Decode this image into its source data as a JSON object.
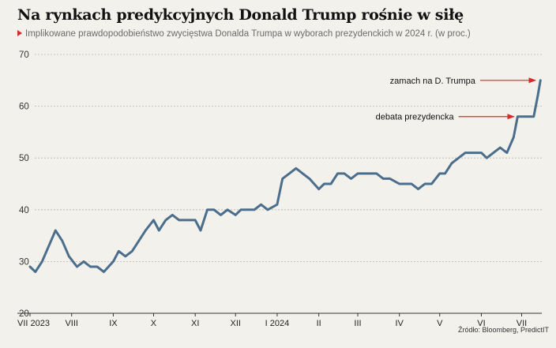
{
  "title": "Na rynkach predykcyjnych Donald Trump rośnie w siłę",
  "subtitle": "Implikowane prawdopodobieństwo zwycięstwa Donalda Trumpa w wyborach prezydenckich w 2024 r. (w proc.)",
  "source": "Źródło: Bloomberg, PredictIT",
  "colors": {
    "line": "#4a6e8c",
    "accent": "#d62b2b",
    "background": "#f3f1ec",
    "grid": "#b9b6ae"
  },
  "chart_data": {
    "type": "line",
    "title": "Na rynkach predykcyjnych Donald Trump rośnie w siłę",
    "subtitle": "Implikowane prawdopodobieństwo zwycięstwa Donalda Trumpa w wyborach prezydenckich w 2024 r. (w proc.)",
    "ylim": [
      20,
      70
    ],
    "yticks": [
      20,
      30,
      40,
      50,
      60,
      70
    ],
    "grid": true,
    "x_ticks": [
      "VII 2023",
      "VIII",
      "IX",
      "X",
      "XI",
      "XII",
      "I 2024",
      "II",
      "III",
      "IV",
      "V",
      "VI",
      "VII"
    ],
    "x": [
      "2023-07-01",
      "2023-07-05",
      "2023-07-10",
      "2023-07-15",
      "2023-07-20",
      "2023-07-25",
      "2023-07-30",
      "2023-08-05",
      "2023-08-10",
      "2023-08-15",
      "2023-08-20",
      "2023-08-25",
      "2023-09-01",
      "2023-09-05",
      "2023-09-10",
      "2023-09-15",
      "2023-09-20",
      "2023-09-25",
      "2023-10-01",
      "2023-10-05",
      "2023-10-10",
      "2023-10-15",
      "2023-10-20",
      "2023-10-25",
      "2023-11-01",
      "2023-11-05",
      "2023-11-10",
      "2023-11-15",
      "2023-11-20",
      "2023-11-25",
      "2023-12-01",
      "2023-12-05",
      "2023-12-10",
      "2023-12-15",
      "2023-12-20",
      "2023-12-25",
      "2024-01-01",
      "2024-01-05",
      "2024-01-10",
      "2024-01-15",
      "2024-01-20",
      "2024-01-25",
      "2024-02-01",
      "2024-02-05",
      "2024-02-10",
      "2024-02-15",
      "2024-02-20",
      "2024-02-25",
      "2024-03-01",
      "2024-03-05",
      "2024-03-10",
      "2024-03-15",
      "2024-03-20",
      "2024-03-25",
      "2024-04-01",
      "2024-04-05",
      "2024-04-10",
      "2024-04-15",
      "2024-04-20",
      "2024-04-25",
      "2024-05-01",
      "2024-05-05",
      "2024-05-10",
      "2024-05-15",
      "2024-05-20",
      "2024-05-25",
      "2024-06-01",
      "2024-06-05",
      "2024-06-10",
      "2024-06-15",
      "2024-06-20",
      "2024-06-25",
      "2024-06-28",
      "2024-07-01",
      "2024-07-05",
      "2024-07-10",
      "2024-07-13",
      "2024-07-15"
    ],
    "series": [
      {
        "values": [
          29,
          28,
          30,
          33,
          36,
          34,
          31,
          29,
          30,
          29,
          29,
          28,
          30,
          32,
          31,
          32,
          34,
          36,
          38,
          36,
          38,
          39,
          38,
          38,
          38,
          36,
          40,
          40,
          39,
          40,
          39,
          40,
          40,
          40,
          41,
          40,
          41,
          46,
          47,
          48,
          47,
          46,
          44,
          45,
          45,
          47,
          47,
          46,
          47,
          47,
          47,
          47,
          46,
          46,
          45,
          45,
          45,
          44,
          45,
          45,
          47,
          47,
          49,
          50,
          51,
          51,
          51,
          50,
          51,
          52,
          51,
          54,
          58,
          58,
          58,
          58,
          62,
          65
        ]
      }
    ],
    "annotations": [
      {
        "text": "zamach na D. Trumpa",
        "date": "2024-07-13",
        "value": 65
      },
      {
        "text": "debata prezydencka",
        "date": "2024-06-27",
        "value": 58
      }
    ]
  }
}
